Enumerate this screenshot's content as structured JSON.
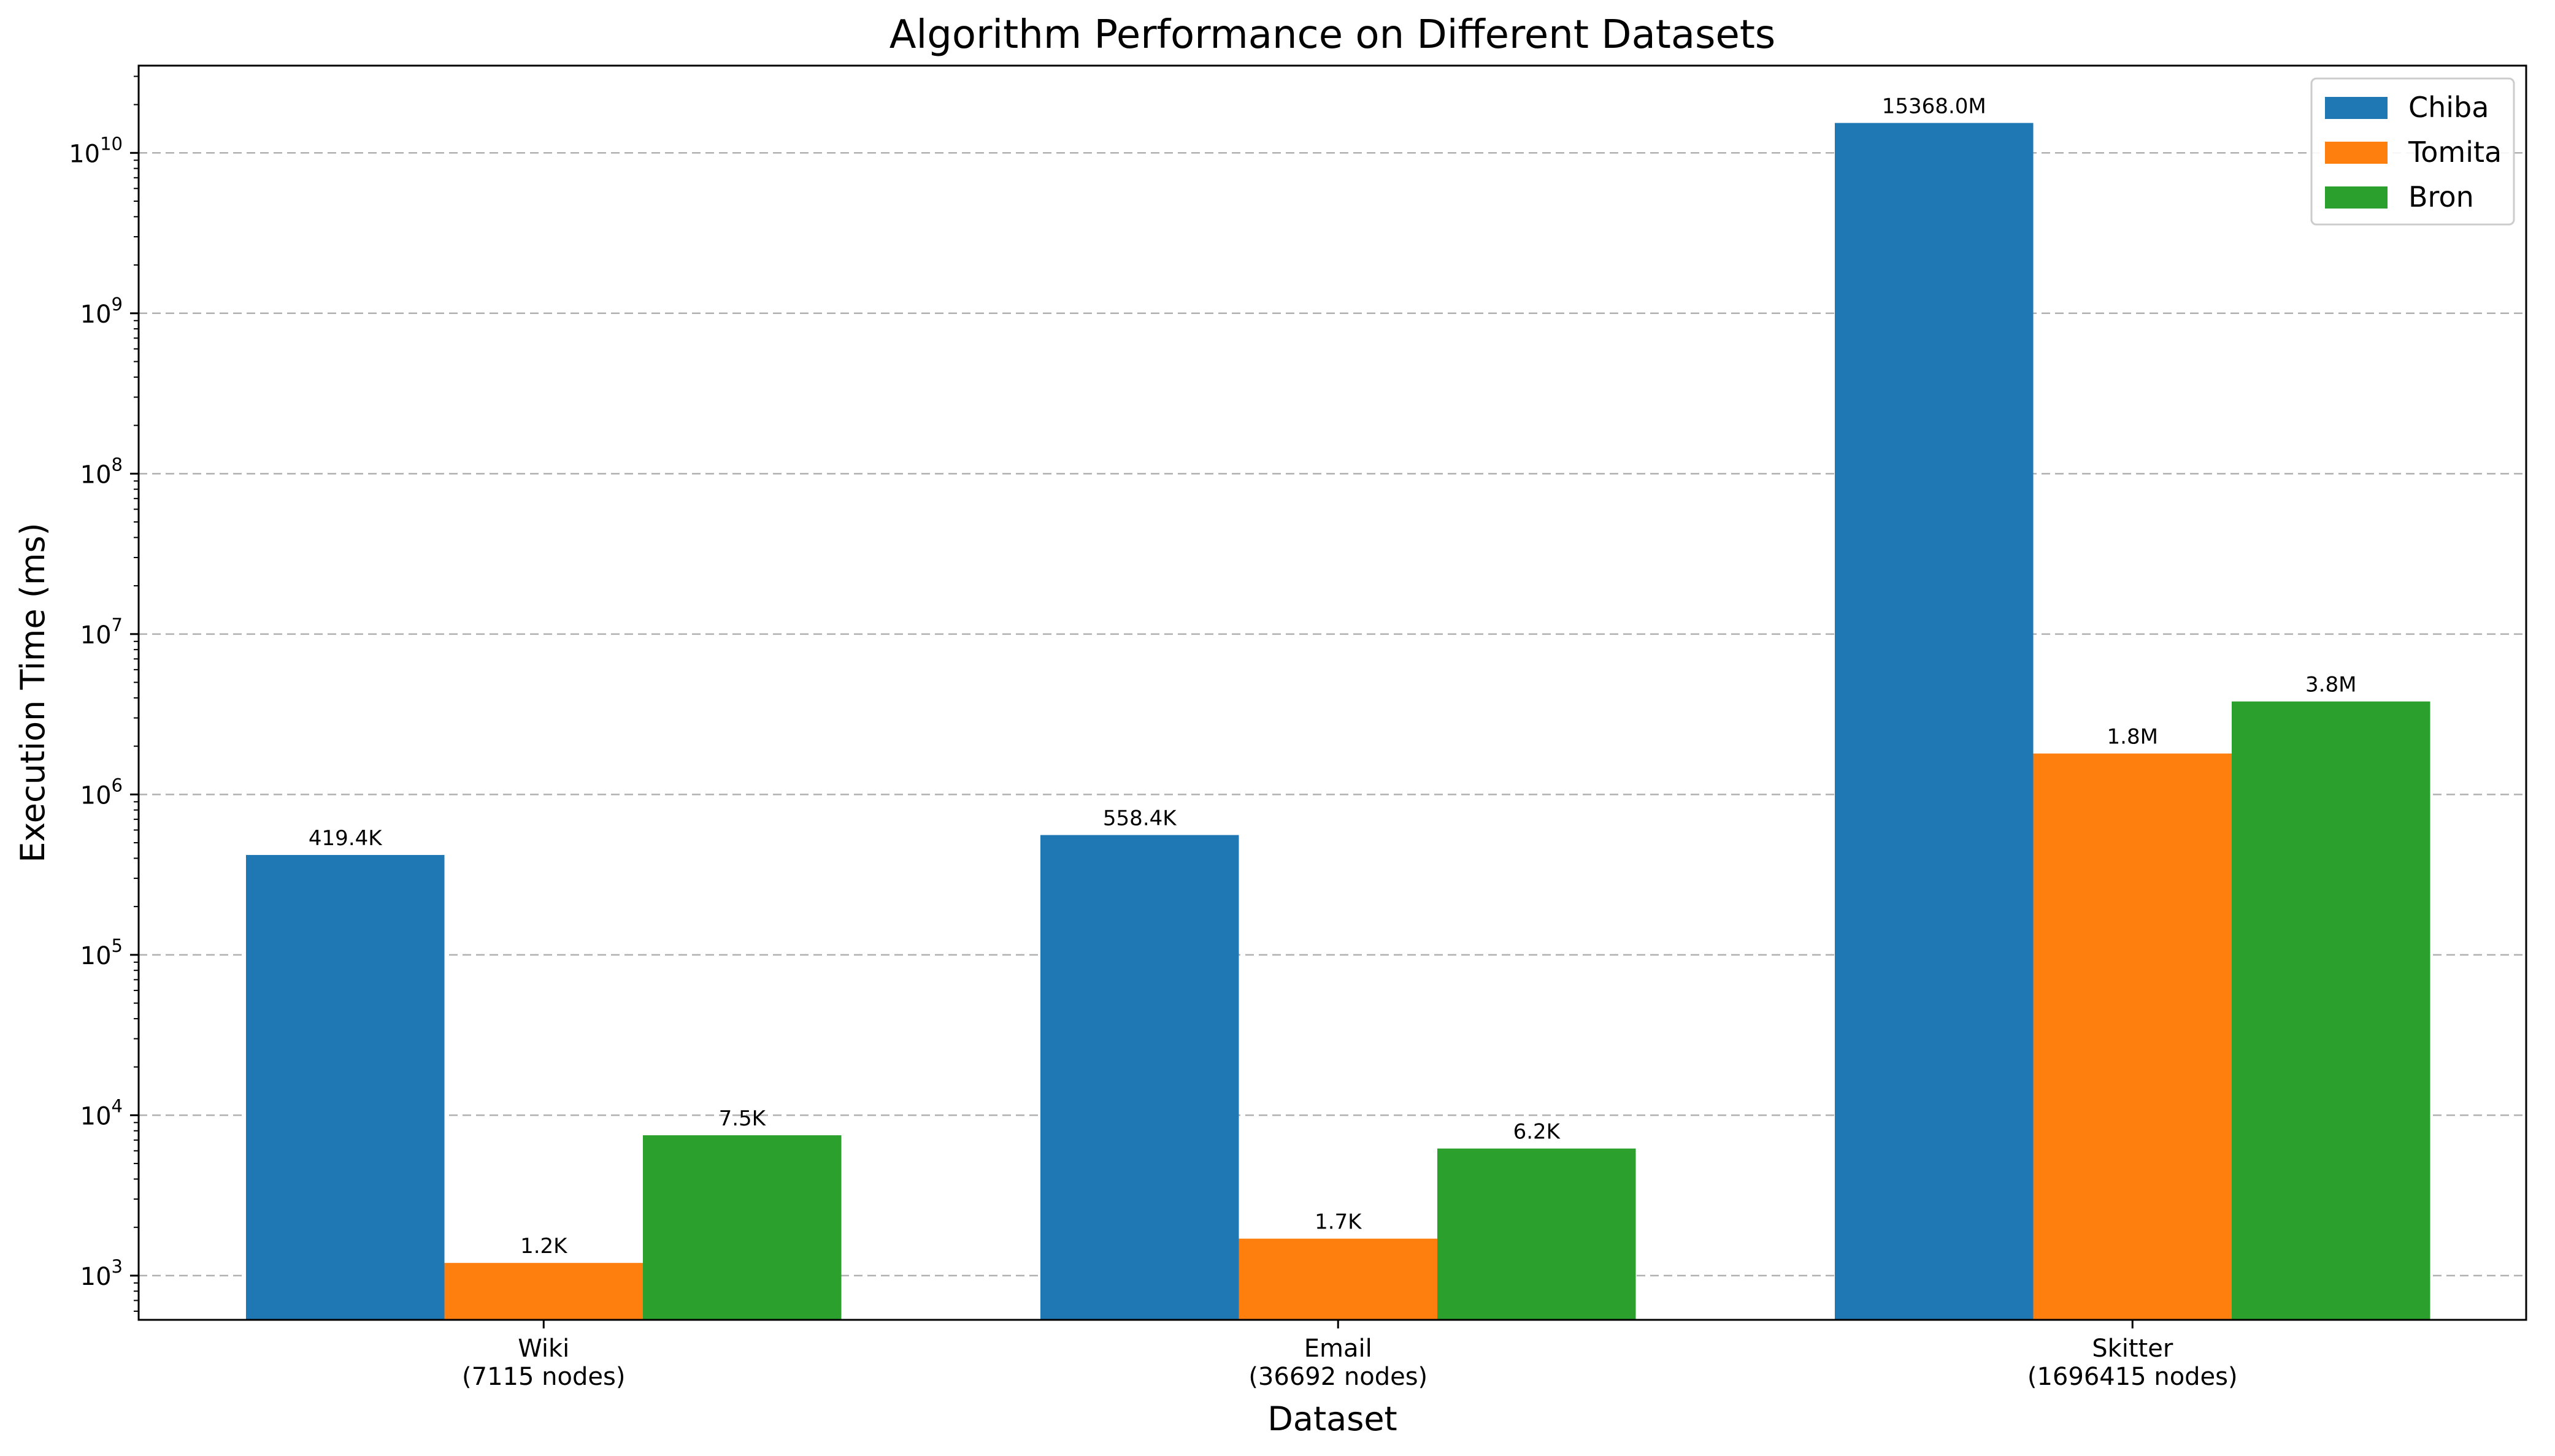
{
  "chart_data": {
    "type": "bar",
    "title": "Algorithm Performance on Different Datasets",
    "xlabel": "Dataset",
    "ylabel": "Execution Time (ms)",
    "yscale": "log",
    "ylim": [
      530,
      35000000000
    ],
    "ytick_values": [
      1000,
      10000,
      100000,
      1000000,
      10000000,
      100000000,
      1000000000,
      10000000000
    ],
    "ytick_exponents": [
      "3",
      "4",
      "5",
      "6",
      "7",
      "8",
      "9",
      "10"
    ],
    "ytick_base": "10",
    "grid": true,
    "legend_position": "top-right",
    "categories": [
      [
        "Wiki",
        "(7115 nodes)"
      ],
      [
        "Email",
        "(36692 nodes)"
      ],
      [
        "Skitter",
        "(1696415 nodes)"
      ]
    ],
    "series": [
      {
        "name": "Chiba",
        "color": "#1f77b4",
        "values": [
          419400,
          558400,
          15368000000
        ],
        "labels": [
          "419.4K",
          "558.4K",
          "15368.0M"
        ]
      },
      {
        "name": "Tomita",
        "color": "#ff7f0e",
        "values": [
          1200,
          1700,
          1800000
        ],
        "labels": [
          "1.2K",
          "1.7K",
          "1.8M"
        ]
      },
      {
        "name": "Bron",
        "color": "#2ca02c",
        "values": [
          7500,
          6200,
          3800000
        ],
        "labels": [
          "7.5K",
          "6.2K",
          "3.8M"
        ]
      }
    ]
  }
}
